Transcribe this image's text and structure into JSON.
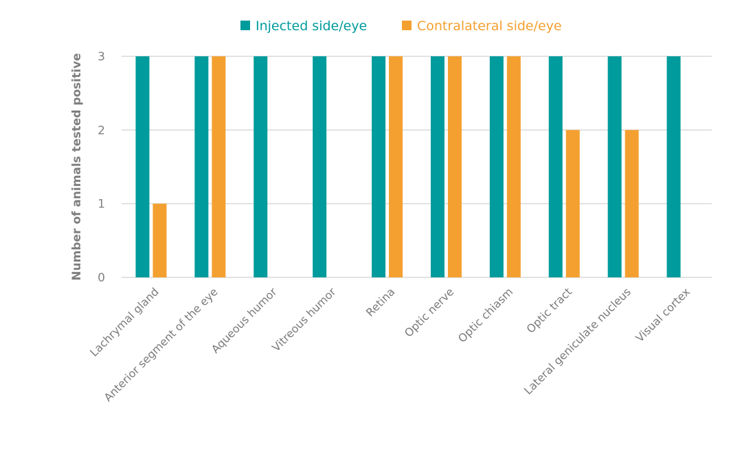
{
  "chart_data": {
    "type": "bar",
    "title": "",
    "xlabel": "",
    "ylabel": "Number of animals tested positive",
    "ylim": [
      0,
      3
    ],
    "yticks": [
      0,
      1,
      2,
      3
    ],
    "grid": true,
    "legend_position": "top-center",
    "categories": [
      "Lachrymal gland",
      "Anterior segment of the eye",
      "Aqueous humor",
      "Vitreous humor",
      "Retina",
      "Optic nerve",
      "Optic chiasm",
      "Optic tract",
      "Lateral geniculate nucleus",
      "Visual cortex"
    ],
    "series": [
      {
        "name": "Injected side/eye",
        "color": "#009B9C",
        "values": [
          3,
          3,
          3,
          3,
          3,
          3,
          3,
          3,
          3,
          3
        ]
      },
      {
        "name": "Contralateral side/eye",
        "color": "#F4A030",
        "values": [
          1,
          3,
          0,
          0,
          3,
          3,
          3,
          2,
          2,
          0
        ]
      }
    ],
    "gridline_color": "#d9d9d9"
  }
}
